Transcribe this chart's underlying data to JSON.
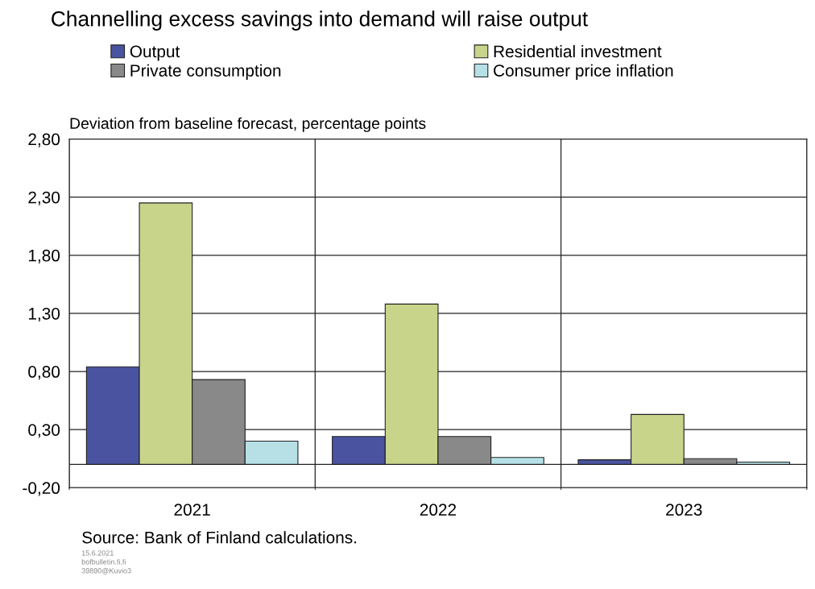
{
  "chart_data": {
    "type": "bar",
    "title": "Channelling excess savings into demand will raise output",
    "ylabel": "Deviation from baseline forecast, percentage points",
    "categories": [
      "2021",
      "2022",
      "2023"
    ],
    "series": [
      {
        "name": "Output",
        "color": "#4a53a0",
        "values": [
          0.84,
          0.24,
          0.04
        ]
      },
      {
        "name": "Residential investment",
        "color": "#c8d48a",
        "values": [
          2.25,
          1.38,
          0.43
        ]
      },
      {
        "name": "Private consumption",
        "color": "#898989",
        "values": [
          0.73,
          0.24,
          0.05
        ]
      },
      {
        "name": "Consumer price inflation",
        "color": "#b6e0e6",
        "values": [
          0.2,
          0.06,
          0.02
        ]
      }
    ],
    "ylim": [
      -0.2,
      2.8
    ],
    "yticks": [
      {
        "value": -0.2,
        "label": "-0,20"
      },
      {
        "value": 0.3,
        "label": "0,30"
      },
      {
        "value": 0.8,
        "label": "0,80"
      },
      {
        "value": 1.3,
        "label": "1,30"
      },
      {
        "value": 1.8,
        "label": "1,80"
      },
      {
        "value": 2.3,
        "label": "2,30"
      },
      {
        "value": 2.8,
        "label": "2,80"
      }
    ],
    "grid": true,
    "legend": "top",
    "annotations": [
      "Source: Bank of Finland calculations.",
      "15.6.2021",
      "bofbulletin.fi.fi",
      "39890@Kuvio3"
    ]
  }
}
